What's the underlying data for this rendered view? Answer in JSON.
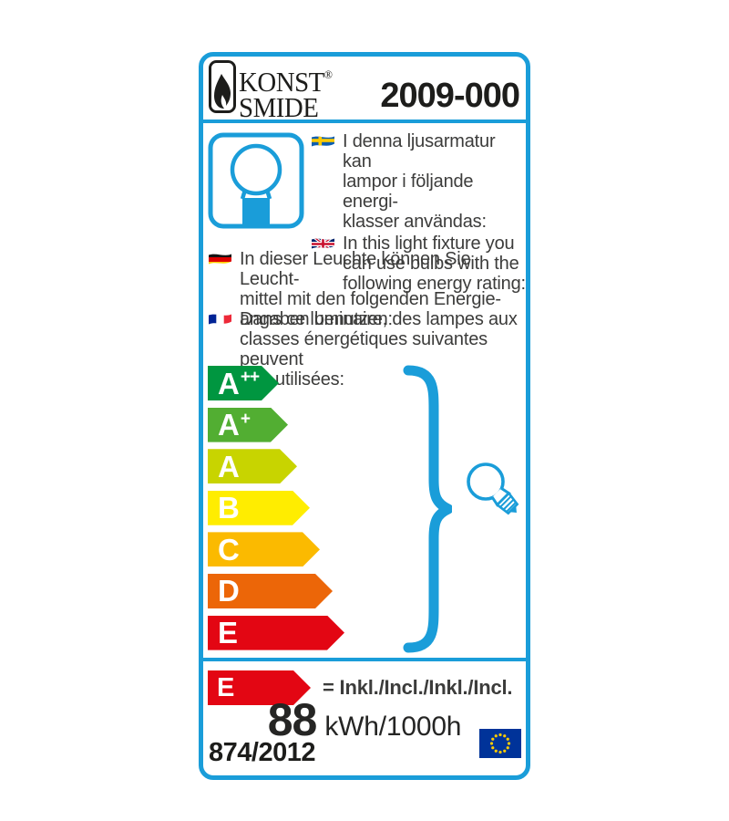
{
  "label": {
    "border_color": "#1a9dd9",
    "brand": {
      "name_line1": "KONST",
      "name_line2": "SMIDE",
      "registered_mark": "®"
    },
    "model_number": "2009-000",
    "intro": [
      {
        "language": "Swedish",
        "flag": "sweden-flag",
        "text": "I denna ljusarmatur kan\nlampor i följande energi-\nklasser användas:"
      },
      {
        "language": "English",
        "flag": "uk-flag",
        "text": "In this light fixture you\ncan use bulbs with the\nfollowing energy rating:"
      },
      {
        "language": "German",
        "flag": "germany-flag",
        "text": "In dieser Leuchte können Sie Leucht-\nmittel mit den folgenden Energie-\nangaben benutzen:"
      },
      {
        "language": "French",
        "flag": "france-flag",
        "text": "Dans ce luminaire, des lampes aux\nclasses énergétiques suivantes peuvent\nêtre utilisées:"
      }
    ],
    "energy_scale": [
      {
        "class": "A",
        "sup": "++",
        "color": "#009640",
        "width": 78
      },
      {
        "class": "A",
        "sup": "+",
        "color": "#52ae32",
        "width": 88
      },
      {
        "class": "A",
        "sup": "",
        "color": "#c8d400",
        "width": 98
      },
      {
        "class": "B",
        "sup": "",
        "color": "#ffed00",
        "width": 112
      },
      {
        "class": "C",
        "sup": "",
        "color": "#fbba00",
        "width": 123
      },
      {
        "class": "D",
        "sup": "",
        "color": "#ec6608",
        "width": 137
      },
      {
        "class": "E",
        "sup": "",
        "color": "#e30613",
        "width": 150
      }
    ],
    "rating": {
      "class": "E",
      "arrow_color": "#e30613",
      "equals_text": "= Inkl./Incl./Inkl./Incl.",
      "consumption_value": "88",
      "consumption_unit": "kWh/1000h"
    },
    "regulation": "874/2012",
    "eu_flag_colors": {
      "field": "#003399",
      "stars": "#ffcc00"
    },
    "accent_blue": "#1a9dd9"
  }
}
